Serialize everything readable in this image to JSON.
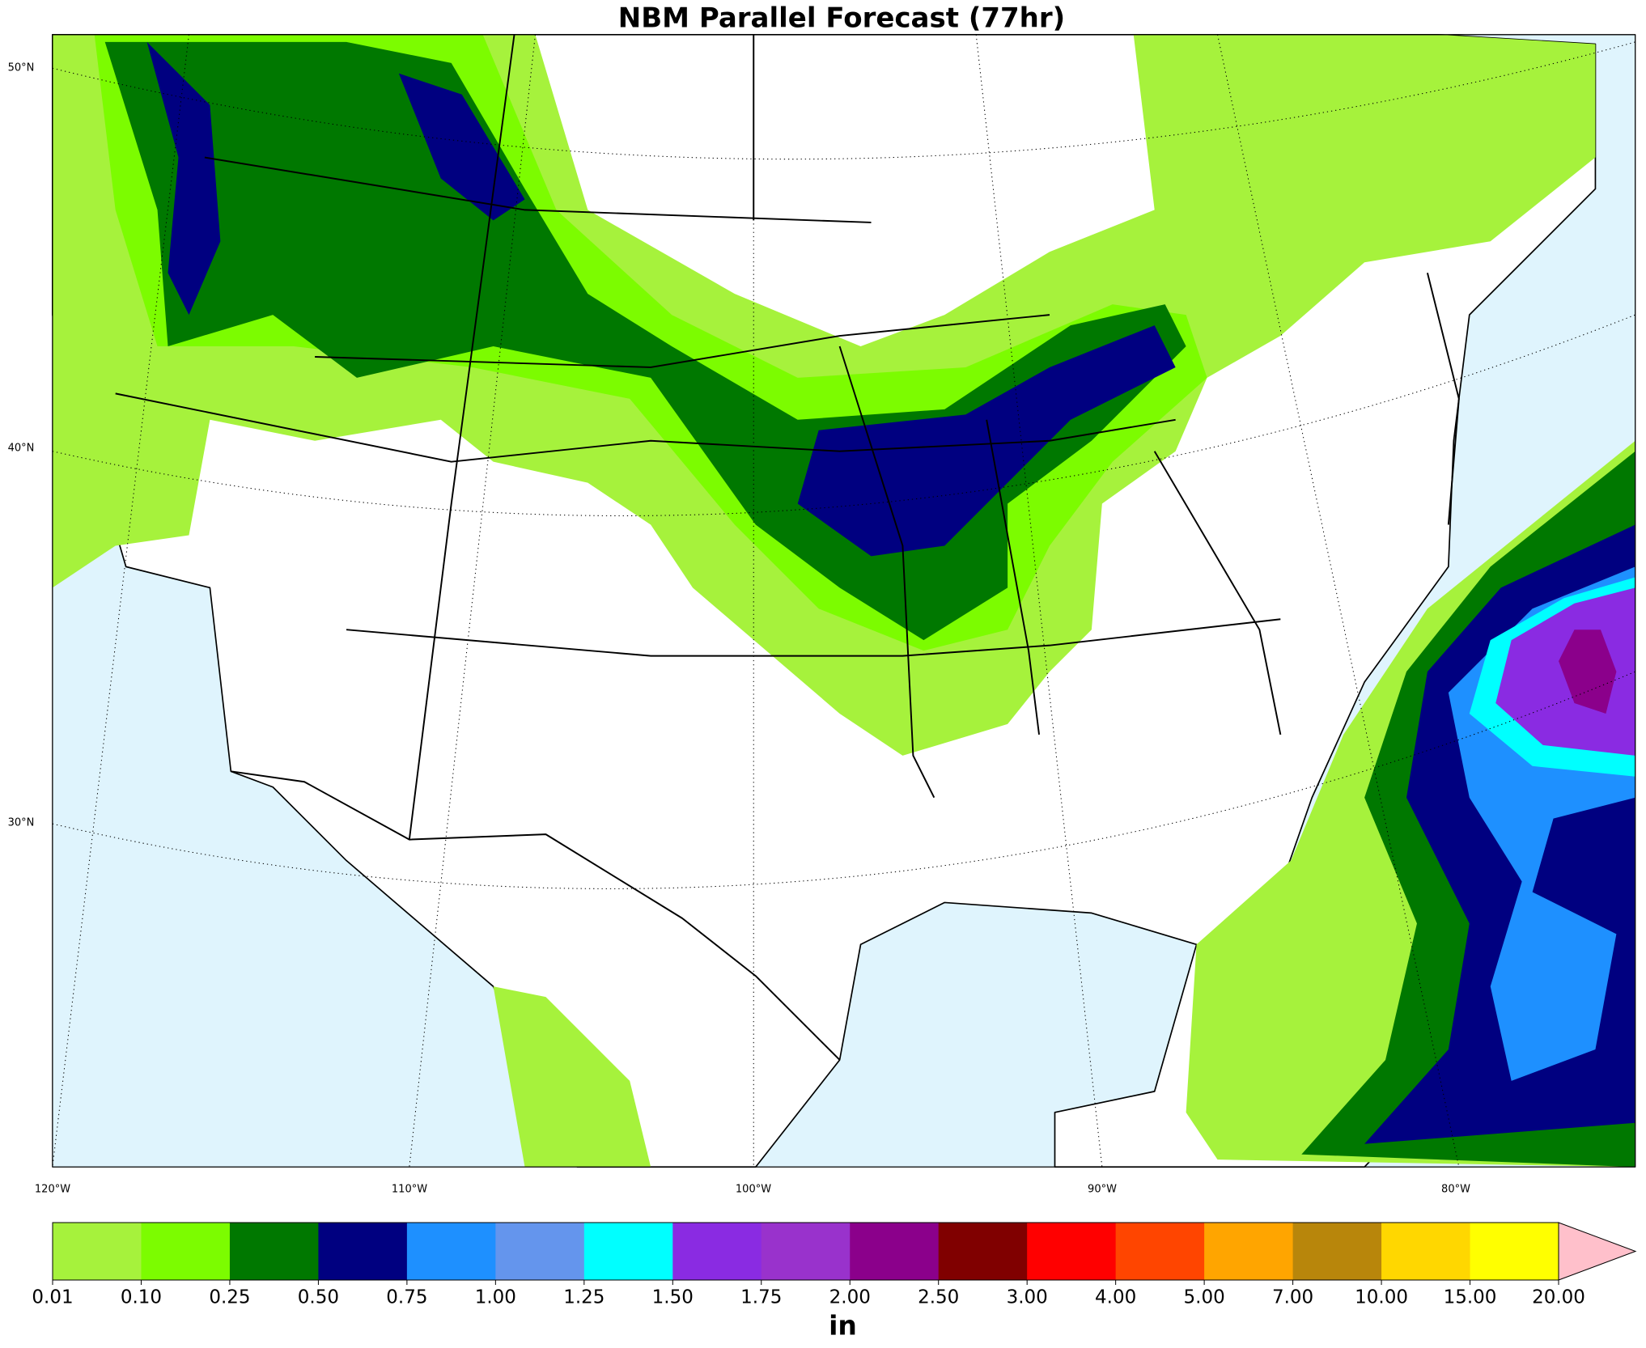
{
  "map": {
    "title": "NBM Parallel Forecast (77hr)",
    "lat_labels": [
      "50°N",
      "40°N",
      "30°N"
    ],
    "lon_labels": [
      "120°W",
      "110°W",
      "100°W",
      "90°W",
      "80°W"
    ]
  },
  "colorbar": {
    "unit": "in",
    "levels": [
      {
        "value": 0.01,
        "label": "0.01"
      },
      {
        "value": 0.1,
        "label": "0.10"
      },
      {
        "value": 0.25,
        "label": "0.25"
      },
      {
        "value": 0.5,
        "label": "0.50"
      },
      {
        "value": 0.75,
        "label": "0.75"
      },
      {
        "value": 1,
        "label": "1.00"
      },
      {
        "value": 1.25,
        "label": "1.25"
      },
      {
        "value": 1.5,
        "label": "1.50"
      },
      {
        "value": 1.75,
        "label": "1.75"
      },
      {
        "value": 2,
        "label": "2.00"
      },
      {
        "value": 2.5,
        "label": "2.50"
      },
      {
        "value": 3,
        "label": "3.00"
      },
      {
        "value": 4,
        "label": "4.00"
      },
      {
        "value": 5,
        "label": "5.00"
      },
      {
        "value": 7,
        "label": "7.00"
      },
      {
        "value": 10,
        "label": "10.00"
      },
      {
        "value": 15,
        "label": "15.00"
      },
      {
        "value": 20,
        "label": "20.00"
      }
    ],
    "colors": [
      "#a6f23c",
      "#7cfc00",
      "#007800",
      "#000080",
      "#1e90ff",
      "#6495ed",
      "#00ffff",
      "#8a2be2",
      "#9932cc",
      "#8b008b",
      "#800000",
      "#ff0000",
      "#ff4500",
      "#ffa500",
      "#b8860b",
      "#ffd700",
      "#ffff00"
    ],
    "extend_color": "#ffc0cb"
  }
}
